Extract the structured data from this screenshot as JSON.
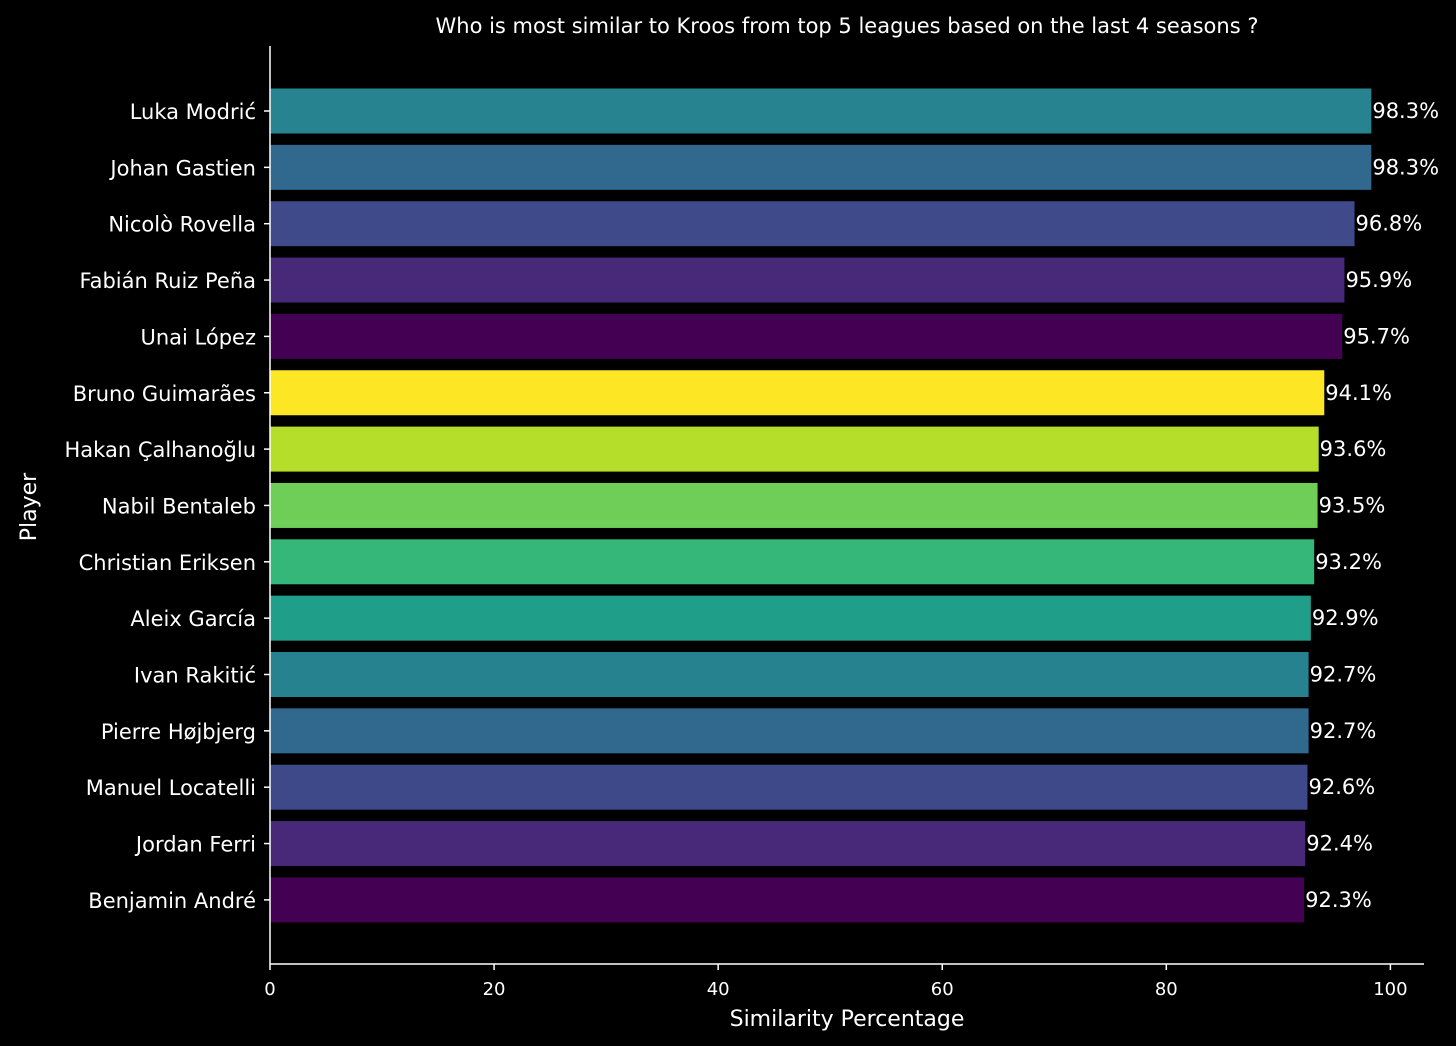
{
  "chart_data": {
    "type": "bar",
    "orientation": "horizontal",
    "title": "Who is most similar to Kroos from top 5 leagues based on the last 4 seasons ?",
    "xlabel": "Similarity Percentage",
    "ylabel": "Player",
    "xlim": [
      0,
      103
    ],
    "x_ticks": [
      "0",
      "20",
      "40",
      "60",
      "80",
      "100"
    ],
    "grid": false,
    "categories": [
      "Luka Modrić",
      "Johan Gastien",
      "Nicolò Rovella",
      "Fabián Ruiz Peña",
      "Unai López",
      "Bruno Guimarães",
      "Hakan Çalhanoğlu",
      "Nabil Bentaleb",
      "Christian Eriksen",
      "Aleix García",
      "Ivan Rakitić",
      "Pierre Højbjerg",
      "Manuel Locatelli",
      "Jordan Ferri",
      "Benjamin André"
    ],
    "values": [
      98.3,
      98.3,
      96.8,
      95.9,
      95.7,
      94.1,
      93.6,
      93.5,
      93.2,
      92.9,
      92.7,
      92.7,
      92.6,
      92.4,
      92.3
    ],
    "data_labels": [
      "98.3%",
      "98.3%",
      "96.8%",
      "95.9%",
      "95.7%",
      "94.1%",
      "93.6%",
      "93.5%",
      "93.2%",
      "92.9%",
      "92.7%",
      "92.7%",
      "92.6%",
      "92.4%",
      "92.3%"
    ],
    "colors": [
      "#26838f",
      "#31688e",
      "#3e4a89",
      "#482878",
      "#440154",
      "#fde725",
      "#b5de2b",
      "#6ece58",
      "#35b779",
      "#1f9e89",
      "#26828e",
      "#31688e",
      "#3e4989",
      "#482878",
      "#440154"
    ]
  }
}
